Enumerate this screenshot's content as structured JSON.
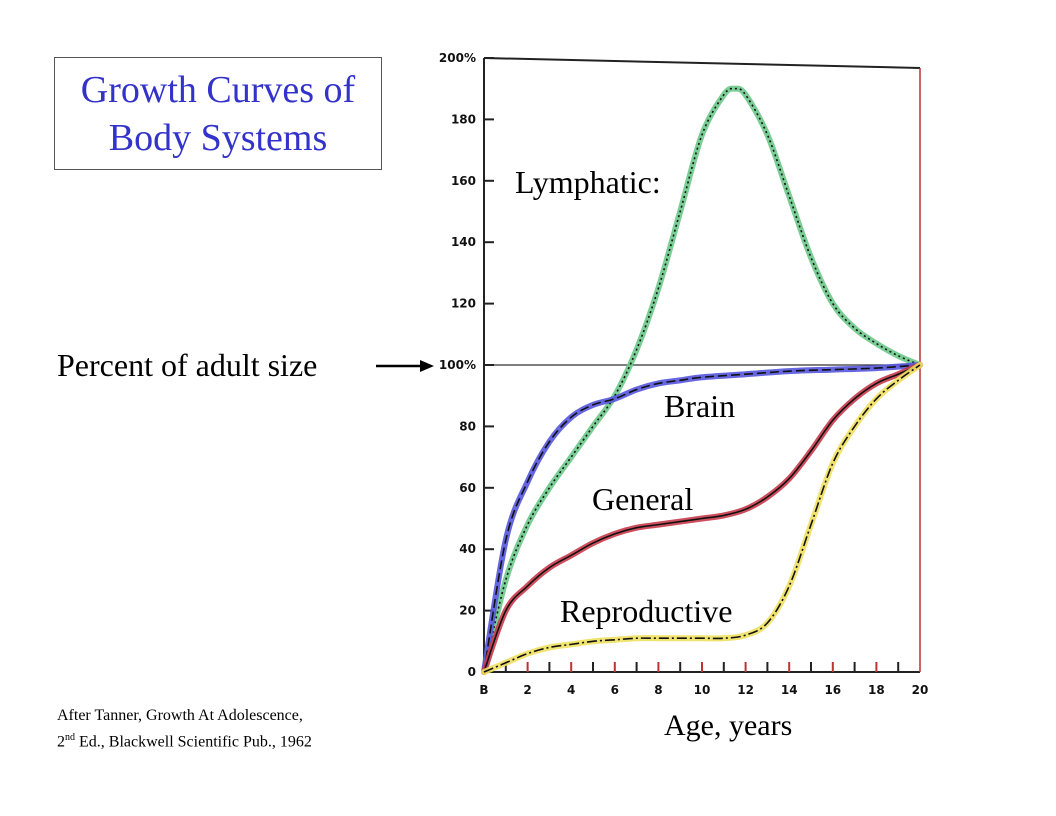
{
  "title_line1": "Growth Curves of",
  "title_line2": "Body Systems",
  "source_line1": "After Tanner, Growth At Adolescence,",
  "source_line2_pre": "2",
  "source_line2_sup": "nd",
  "source_line2_post": " Ed., Blackwell Scientific Pub., 1962",
  "colors": {
    "title": "#3333cc",
    "lymphatic": "#6cc98a",
    "brain": "#5555dd",
    "general": "#c83a4a",
    "reproductive": "#f0e060"
  },
  "chart_data": {
    "type": "line",
    "title": "Growth Curves of Body Systems",
    "xlabel": "Age, years",
    "ylabel": "Percent of adult size",
    "xlim": [
      0,
      20
    ],
    "ylim": [
      0,
      200
    ],
    "x_tick_labels": [
      "B",
      "2",
      "4",
      "6",
      "8",
      "10",
      "12",
      "14",
      "16",
      "18",
      "20"
    ],
    "y_tick_labels": [
      "0",
      "20",
      "40",
      "60",
      "80",
      "100%",
      "120",
      "140",
      "160",
      "180",
      "200%"
    ],
    "grid": false,
    "legend": "none (series labeled directly on chart)",
    "series": [
      {
        "name": "Lymphatic:",
        "x": [
          0,
          1,
          2,
          3,
          4,
          5,
          6,
          7,
          8,
          9,
          10,
          11,
          11.5,
          12,
          13,
          14,
          15,
          16,
          17,
          18,
          19,
          20
        ],
        "values": [
          0,
          30,
          48,
          60,
          70,
          80,
          90,
          105,
          125,
          150,
          175,
          188,
          190,
          188,
          175,
          155,
          135,
          120,
          112,
          107,
          103,
          100
        ]
      },
      {
        "name": "Brain",
        "x": [
          0,
          1,
          2,
          3,
          4,
          5,
          6,
          7,
          8,
          9,
          10,
          12,
          14,
          16,
          18,
          20
        ],
        "values": [
          0,
          43,
          62,
          75,
          83,
          87,
          89,
          92,
          94,
          95,
          96,
          97,
          98,
          98.5,
          99,
          100
        ]
      },
      {
        "name": "General",
        "x": [
          0,
          1,
          2,
          3,
          4,
          5,
          6,
          7,
          8,
          9,
          10,
          11,
          12,
          13,
          14,
          15,
          16,
          17,
          18,
          19,
          20
        ],
        "values": [
          0,
          20,
          28,
          34,
          38,
          42,
          45,
          47,
          48,
          49,
          50,
          51,
          53,
          57,
          63,
          72,
          82,
          89,
          94,
          97,
          100
        ]
      },
      {
        "name": "Reproductive",
        "x": [
          0,
          1,
          2,
          3,
          4,
          5,
          6,
          7,
          8,
          9,
          10,
          11,
          12,
          13,
          14,
          15,
          16,
          17,
          18,
          19,
          20
        ],
        "values": [
          0,
          3,
          6,
          8,
          9,
          10,
          10.5,
          11,
          11,
          11,
          11,
          11,
          12,
          16,
          28,
          48,
          68,
          80,
          89,
          95,
          100
        ]
      }
    ]
  }
}
